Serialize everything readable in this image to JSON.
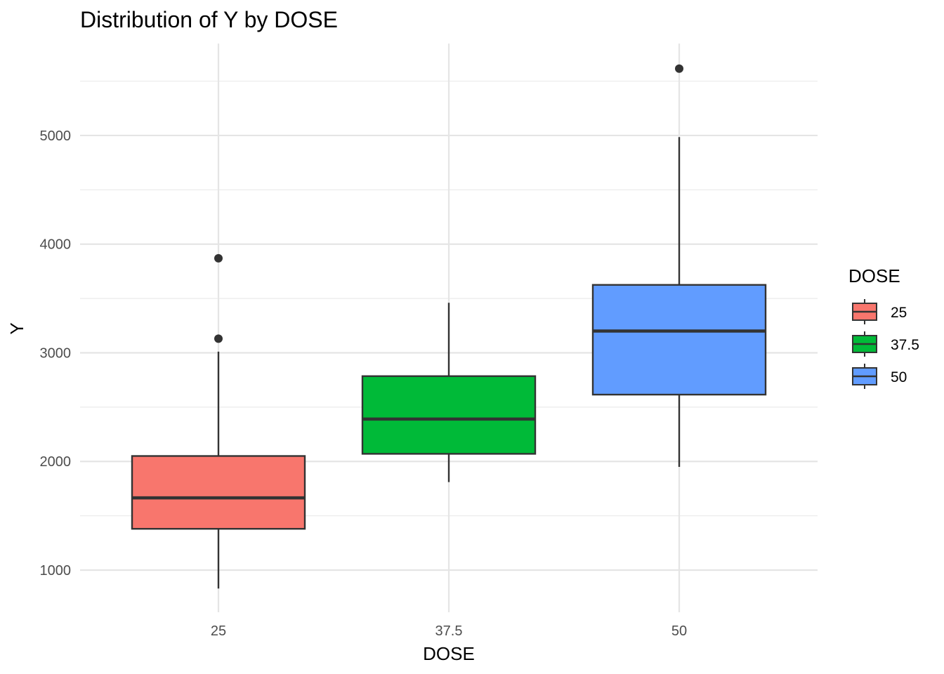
{
  "chart_data": {
    "type": "boxplot",
    "title": "Distribution of Y by DOSE",
    "xlabel": "DOSE",
    "ylabel": "Y",
    "categories": [
      "25",
      "37.5",
      "50"
    ],
    "y_ticks": [
      1000,
      2000,
      3000,
      4000,
      5000
    ],
    "ylim": [
      650,
      5750
    ],
    "grid": true,
    "legend": {
      "title": "DOSE",
      "position": "right",
      "entries": [
        "25",
        "37.5",
        "50"
      ]
    },
    "series": [
      {
        "category": "25",
        "color": "#F8766D",
        "min": 830,
        "q1": 1380,
        "median": 1665,
        "q3": 2050,
        "max": 3010,
        "outliers": [
          3130,
          3870
        ]
      },
      {
        "category": "37.5",
        "color": "#00BA38",
        "min": 1810,
        "q1": 2070,
        "median": 2390,
        "q3": 2785,
        "max": 3460,
        "outliers": []
      },
      {
        "category": "50",
        "color": "#619CFF",
        "min": 1950,
        "q1": 2615,
        "median": 3200,
        "q3": 3625,
        "max": 4985,
        "outliers": [
          5615
        ]
      }
    ]
  }
}
